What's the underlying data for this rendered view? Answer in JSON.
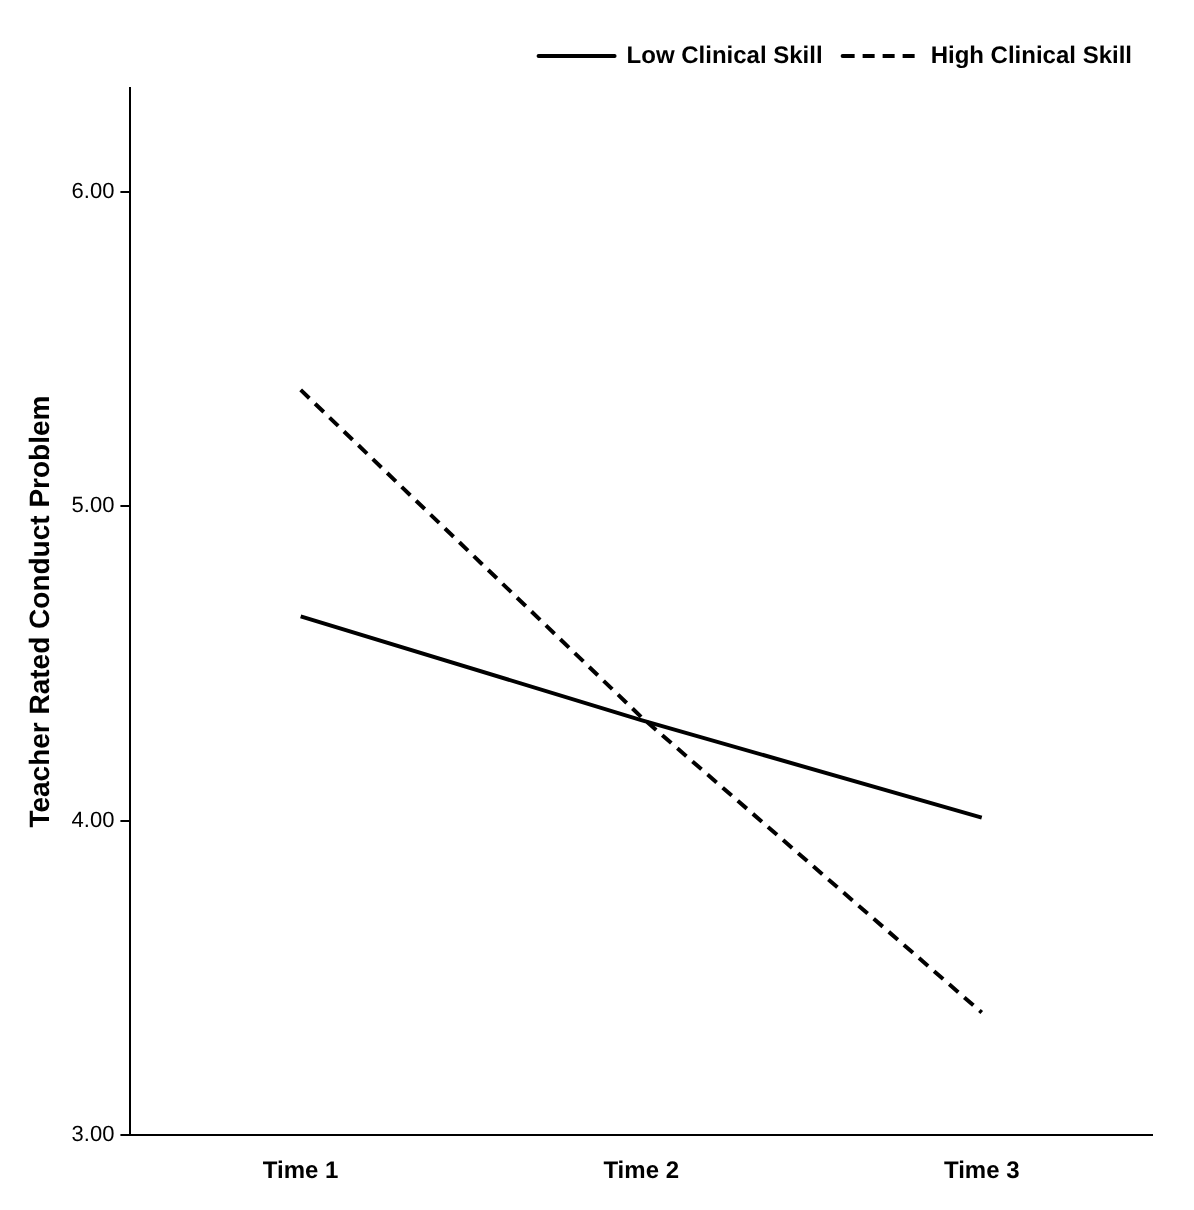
{
  "chart_data": {
    "type": "line",
    "ylabel": "Teacher Rated Conduct Problem",
    "categories": [
      "Time 1",
      "Time 2",
      "Time 3"
    ],
    "series": [
      {
        "name": "Low Clinical Skill",
        "color": "#000000",
        "line_style": "solid",
        "values": [
          4.65,
          4.32,
          4.01
        ]
      },
      {
        "name": "High Clinical Skill",
        "color": "#000000",
        "line_style": "dashed",
        "values": [
          5.37,
          4.33,
          3.39
        ]
      }
    ],
    "ylim": [
      3,
      6.33
    ],
    "yticks": [
      {
        "value": 3,
        "label": "3.00"
      },
      {
        "value": 4,
        "label": "4.00"
      },
      {
        "value": 5,
        "label": "5.00"
      },
      {
        "value": 6,
        "label": "6.00"
      }
    ],
    "grid": false,
    "legend": "top right",
    "marker": "none"
  }
}
